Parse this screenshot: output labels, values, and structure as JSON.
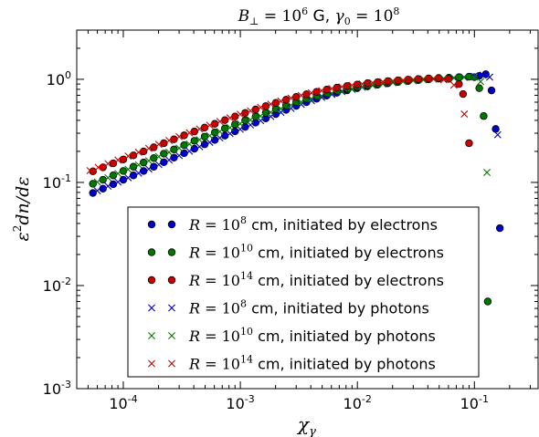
{
  "chart_data": {
    "type": "scatter",
    "title": {
      "b": "B",
      "sub_perp": "⊥",
      "eq1": " = 10",
      "exp1": "6",
      "unit": " G, ",
      "gamma": "γ",
      "sub0": "0",
      "eq2": " = 10",
      "exp2": "8"
    },
    "xlabel": {
      "chi": "χ",
      "sub": "γ"
    },
    "ylabel": {
      "eps": "ε",
      "sup2": "2",
      "rest": "dn/dε"
    },
    "xscale": "log",
    "yscale": "log",
    "xlim": [
      4e-05,
      0.35
    ],
    "ylim": [
      0.001,
      3
    ],
    "xticks": [
      {
        "value": 0.0001,
        "base": "10",
        "exp": "-4"
      },
      {
        "value": 0.001,
        "base": "10",
        "exp": "-3"
      },
      {
        "value": 0.01,
        "base": "10",
        "exp": "-2"
      },
      {
        "value": 0.1,
        "base": "10",
        "exp": "-1"
      }
    ],
    "yticks": [
      {
        "value": 0.001,
        "base": "10",
        "exp": "-3"
      },
      {
        "value": 0.01,
        "base": "10",
        "exp": "-2"
      },
      {
        "value": 0.1,
        "base": "10",
        "exp": "-1"
      },
      {
        "value": 1,
        "base": "10",
        "exp": "0"
      }
    ],
    "legend_position": "lower-right",
    "series": [
      {
        "marker": "circle",
        "color": "#0000cc",
        "label": {
          "r": "R",
          "eq": " = 10",
          "exp": "8",
          "rest": " cm, initiated by electrons"
        },
        "x": [
          5.5e-05,
          6.7e-05,
          8.2e-05,
          0.0001,
          0.000122,
          0.000149,
          0.000182,
          0.000222,
          0.000271,
          0.000331,
          0.000405,
          0.000495,
          0.000605,
          0.000738,
          0.0009,
          0.0011,
          0.00135,
          0.00165,
          0.00201,
          0.00246,
          0.003,
          0.00367,
          0.00448,
          0.00547,
          0.00668,
          0.00816,
          0.00997,
          0.0122,
          0.0149,
          0.0182,
          0.0222,
          0.0271,
          0.0331,
          0.0405,
          0.0495,
          0.0605,
          0.0738,
          0.09,
          0.11,
          0.125,
          0.14,
          0.152,
          0.165
        ],
        "y": [
          0.079,
          0.087,
          0.096,
          0.106,
          0.117,
          0.129,
          0.142,
          0.157,
          0.174,
          0.192,
          0.212,
          0.234,
          0.258,
          0.284,
          0.313,
          0.345,
          0.38,
          0.418,
          0.46,
          0.505,
          0.552,
          0.6,
          0.648,
          0.695,
          0.74,
          0.782,
          0.82,
          0.855,
          0.887,
          0.915,
          0.94,
          0.962,
          0.982,
          1.0,
          1.015,
          1.03,
          1.045,
          1.06,
          1.08,
          1.12,
          0.78,
          0.33,
          0.036
        ]
      },
      {
        "marker": "circle",
        "color": "#007700",
        "label": {
          "r": "R",
          "eq": " = 10",
          "exp": "10",
          "rest": " cm, initiated by electrons"
        },
        "x": [
          5.5e-05,
          6.7e-05,
          8.2e-05,
          0.0001,
          0.000122,
          0.000149,
          0.000182,
          0.000222,
          0.000271,
          0.000331,
          0.000405,
          0.000495,
          0.000605,
          0.000738,
          0.0009,
          0.0011,
          0.00135,
          0.00165,
          0.00201,
          0.00246,
          0.003,
          0.00367,
          0.00448,
          0.00547,
          0.00668,
          0.00816,
          0.00997,
          0.0122,
          0.0149,
          0.0182,
          0.0222,
          0.0271,
          0.0331,
          0.0405,
          0.0495,
          0.0605,
          0.0738,
          0.09,
          0.1,
          0.11,
          0.12,
          0.13
        ],
        "y": [
          0.097,
          0.106,
          0.117,
          0.129,
          0.142,
          0.156,
          0.172,
          0.19,
          0.209,
          0.23,
          0.253,
          0.278,
          0.305,
          0.334,
          0.365,
          0.399,
          0.435,
          0.474,
          0.515,
          0.558,
          0.602,
          0.646,
          0.69,
          0.733,
          0.774,
          0.812,
          0.847,
          0.878,
          0.906,
          0.931,
          0.953,
          0.972,
          0.99,
          1.005,
          1.02,
          1.035,
          1.048,
          1.06,
          1.05,
          0.82,
          0.44,
          0.007
        ]
      },
      {
        "marker": "circle",
        "color": "#cc0000",
        "label": {
          "r": "R",
          "eq": " = 10",
          "exp": "14",
          "rest": " cm, initiated by electrons"
        },
        "x": [
          5.5e-05,
          6.7e-05,
          8.2e-05,
          0.0001,
          0.000122,
          0.000149,
          0.000182,
          0.000222,
          0.000271,
          0.000331,
          0.000405,
          0.000495,
          0.000605,
          0.000738,
          0.0009,
          0.0011,
          0.00135,
          0.00165,
          0.00201,
          0.00246,
          0.003,
          0.00367,
          0.00448,
          0.00547,
          0.00668,
          0.00816,
          0.00997,
          0.0122,
          0.0149,
          0.0182,
          0.0222,
          0.0271,
          0.0331,
          0.0405,
          0.0495,
          0.0605,
          0.0738,
          0.08,
          0.09
        ],
        "y": [
          0.128,
          0.14,
          0.153,
          0.167,
          0.183,
          0.2,
          0.219,
          0.24,
          0.262,
          0.286,
          0.312,
          0.34,
          0.37,
          0.402,
          0.436,
          0.472,
          0.51,
          0.55,
          0.591,
          0.633,
          0.675,
          0.716,
          0.756,
          0.794,
          0.829,
          0.861,
          0.89,
          0.916,
          0.939,
          0.959,
          0.977,
          0.993,
          1.007,
          1.02,
          1.03,
          1.01,
          0.9,
          0.72,
          0.24
        ]
      },
      {
        "marker": "x",
        "color": "#0000cc",
        "label": {
          "r": "R",
          "eq": " = 10",
          "exp": "8",
          "rest": " cm, initiated by photons"
        },
        "x": [
          6e-05,
          7.4e-05,
          9e-05,
          0.00011,
          0.000135,
          0.000165,
          0.000201,
          0.000246,
          0.0003,
          0.000367,
          0.000448,
          0.000547,
          0.000668,
          0.000816,
          0.000997,
          0.00122,
          0.00149,
          0.00182,
          0.00222,
          0.00271,
          0.00331,
          0.00405,
          0.00495,
          0.00605,
          0.00738,
          0.009,
          0.011,
          0.0135,
          0.0165,
          0.0201,
          0.0246,
          0.03,
          0.0367,
          0.0448,
          0.0547,
          0.0668,
          0.0816,
          0.0997,
          0.118,
          0.135,
          0.158
        ],
        "y": [
          0.083,
          0.092,
          0.101,
          0.111,
          0.123,
          0.135,
          0.149,
          0.165,
          0.182,
          0.201,
          0.222,
          0.245,
          0.27,
          0.298,
          0.328,
          0.361,
          0.397,
          0.436,
          0.478,
          0.523,
          0.571,
          0.62,
          0.668,
          0.714,
          0.758,
          0.8,
          0.838,
          0.872,
          0.902,
          0.928,
          0.951,
          0.971,
          0.989,
          1.005,
          1.02,
          1.035,
          1.05,
          1.07,
          1.1,
          1.05,
          0.29
        ]
      },
      {
        "marker": "x",
        "color": "#007700",
        "label": {
          "r": "R",
          "eq": " = 10",
          "exp": "10",
          "rest": " cm, initiated by photons"
        },
        "x": [
          6e-05,
          7.4e-05,
          9e-05,
          0.00011,
          0.000135,
          0.000165,
          0.000201,
          0.000246,
          0.0003,
          0.000367,
          0.000448,
          0.000547,
          0.000668,
          0.000816,
          0.000997,
          0.00122,
          0.00149,
          0.00182,
          0.00222,
          0.00271,
          0.00331,
          0.00405,
          0.00495,
          0.00605,
          0.00738,
          0.009,
          0.011,
          0.0135,
          0.0165,
          0.0201,
          0.0246,
          0.03,
          0.0367,
          0.0448,
          0.0547,
          0.0668,
          0.0816,
          0.0997,
          0.113,
          0.128
        ],
        "y": [
          0.101,
          0.111,
          0.122,
          0.134,
          0.148,
          0.162,
          0.178,
          0.196,
          0.215,
          0.236,
          0.259,
          0.284,
          0.311,
          0.34,
          0.371,
          0.404,
          0.44,
          0.478,
          0.518,
          0.56,
          0.603,
          0.647,
          0.69,
          0.732,
          0.772,
          0.81,
          0.845,
          0.876,
          0.904,
          0.929,
          0.951,
          0.97,
          0.988,
          1.003,
          1.017,
          1.03,
          1.043,
          1.05,
          0.95,
          0.125
        ]
      },
      {
        "marker": "x",
        "color": "#cc0000",
        "label": {
          "r": "R",
          "eq": " = 10",
          "exp": "14",
          "rest": " cm, initiated by photons"
        },
        "x": [
          5.2e-05,
          6.1e-05,
          7.4e-05,
          9e-05,
          0.00011,
          0.000135,
          0.000165,
          0.000201,
          0.000246,
          0.0003,
          0.000367,
          0.000448,
          0.000547,
          0.000668,
          0.000816,
          0.000997,
          0.00122,
          0.00149,
          0.00182,
          0.00222,
          0.00271,
          0.00331,
          0.00405,
          0.00495,
          0.00605,
          0.00738,
          0.009,
          0.011,
          0.0135,
          0.0165,
          0.0201,
          0.0246,
          0.03,
          0.0367,
          0.0448,
          0.0547,
          0.0668,
          0.082
        ],
        "y": [
          0.13,
          0.14,
          0.152,
          0.165,
          0.18,
          0.196,
          0.214,
          0.234,
          0.255,
          0.278,
          0.303,
          0.33,
          0.359,
          0.39,
          0.423,
          0.458,
          0.495,
          0.534,
          0.574,
          0.615,
          0.657,
          0.698,
          0.738,
          0.776,
          0.812,
          0.845,
          0.875,
          0.902,
          0.926,
          0.947,
          0.966,
          0.982,
          0.997,
          1.01,
          1.02,
          0.99,
          0.88,
          0.46
        ]
      }
    ]
  }
}
